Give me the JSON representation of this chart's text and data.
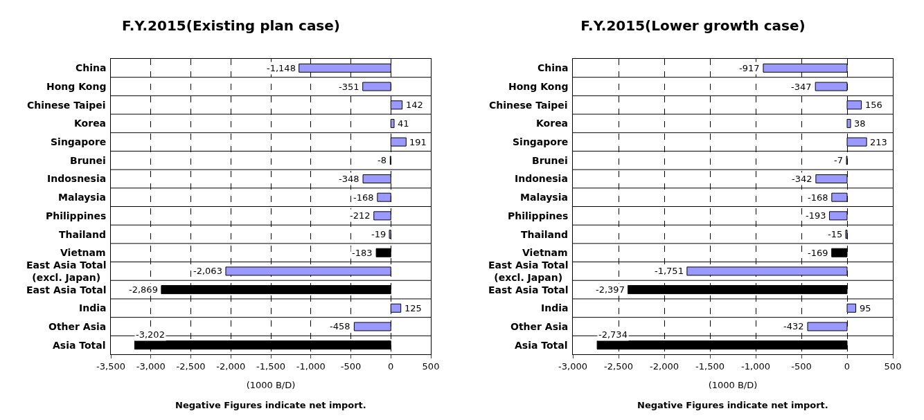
{
  "chart_data": [
    {
      "type": "bar",
      "orientation": "horizontal",
      "title": "F.Y.2015(Existing plan case)",
      "xlabel": "(1000 B/D)",
      "annotations": [
        "Negative Figures indicate net import."
      ],
      "categories": [
        "China",
        "Hong Kong",
        "Chinese Taipei",
        "Korea",
        "Singapore",
        "Brunei",
        "Indosnesia",
        "Malaysia",
        "Philippines",
        "Thailand",
        "Vietnam",
        "East Asia Total\n(excl. Japan)",
        "East Asia Total",
        "India",
        "Other Asia",
        "Asia Total"
      ],
      "values": [
        -1148,
        -351,
        142,
        41,
        191,
        -8,
        -348,
        -168,
        -212,
        -19,
        -183,
        -2063,
        -2869,
        125,
        -458,
        -3202
      ],
      "value_labels": [
        "-1,148",
        "-351",
        "142",
        "41",
        "191",
        "-8",
        "-348",
        "-168",
        "-212",
        "-19",
        "-183",
        "-2,063",
        "-2,869",
        "125",
        "-458",
        "-3,202"
      ],
      "colors": [
        "#9999ff",
        "#9999ff",
        "#9999ff",
        "#9999ff",
        "#9999ff",
        "#9999ff",
        "#9999ff",
        "#9999ff",
        "#9999ff",
        "#9999ff",
        "#000000",
        "#9999ff",
        "#000000",
        "#9999ff",
        "#9999ff",
        "#000000"
      ],
      "xlim": [
        -3500,
        500
      ],
      "xticks": [
        {
          "value": -3500,
          "label": "-3,500"
        },
        {
          "value": -3000,
          "label": "-3,000"
        },
        {
          "value": -2500,
          "label": "-2,500"
        },
        {
          "value": -2000,
          "label": "-2,000"
        },
        {
          "value": -1500,
          "label": "-1,500"
        },
        {
          "value": -1000,
          "label": "-1,000"
        },
        -500,
        0,
        500
      ],
      "grid": "x"
    },
    {
      "type": "bar",
      "orientation": "horizontal",
      "title": "F.Y.2015(Lower growth case)",
      "xlabel": "(1000 B/D)",
      "annotations": [
        "Negative Figures indicate net import."
      ],
      "categories": [
        "China",
        "Hong Kong",
        "Chinese Taipei",
        "Korea",
        "Singapore",
        "Brunei",
        "Indonesia",
        "Malaysia",
        "Philippines",
        "Thailand",
        "Vietnam",
        "East Asia Total\n(excl. Japan)",
        "East Asia Total",
        "India",
        "Other Asia",
        "Asia Total"
      ],
      "values": [
        -917,
        -347,
        156,
        38,
        213,
        -7,
        -342,
        -168,
        -193,
        -15,
        -169,
        -1751,
        -2397,
        95,
        -432,
        -2734
      ],
      "value_labels": [
        "-917",
        "-347",
        "156",
        "38",
        "213",
        "-7",
        "-342",
        "-168",
        "-193",
        "-15",
        "-169",
        "-1,751",
        "-2,397",
        "95",
        "-432",
        "-2,734"
      ],
      "colors": [
        "#9999ff",
        "#9999ff",
        "#9999ff",
        "#9999ff",
        "#9999ff",
        "#9999ff",
        "#9999ff",
        "#9999ff",
        "#9999ff",
        "#9999ff",
        "#000000",
        "#9999ff",
        "#000000",
        "#9999ff",
        "#9999ff",
        "#000000"
      ],
      "xlim": [
        -3000,
        500
      ],
      "xticks": [
        {
          "value": -3000,
          "label": "-3,000"
        },
        {
          "value": -2500,
          "label": "-2,500"
        },
        {
          "value": -2000,
          "label": "-2,000"
        },
        {
          "value": -1500,
          "label": "-1,500"
        },
        {
          "value": -1000,
          "label": "-1,000"
        },
        -500,
        0,
        500
      ],
      "grid": "x"
    }
  ]
}
